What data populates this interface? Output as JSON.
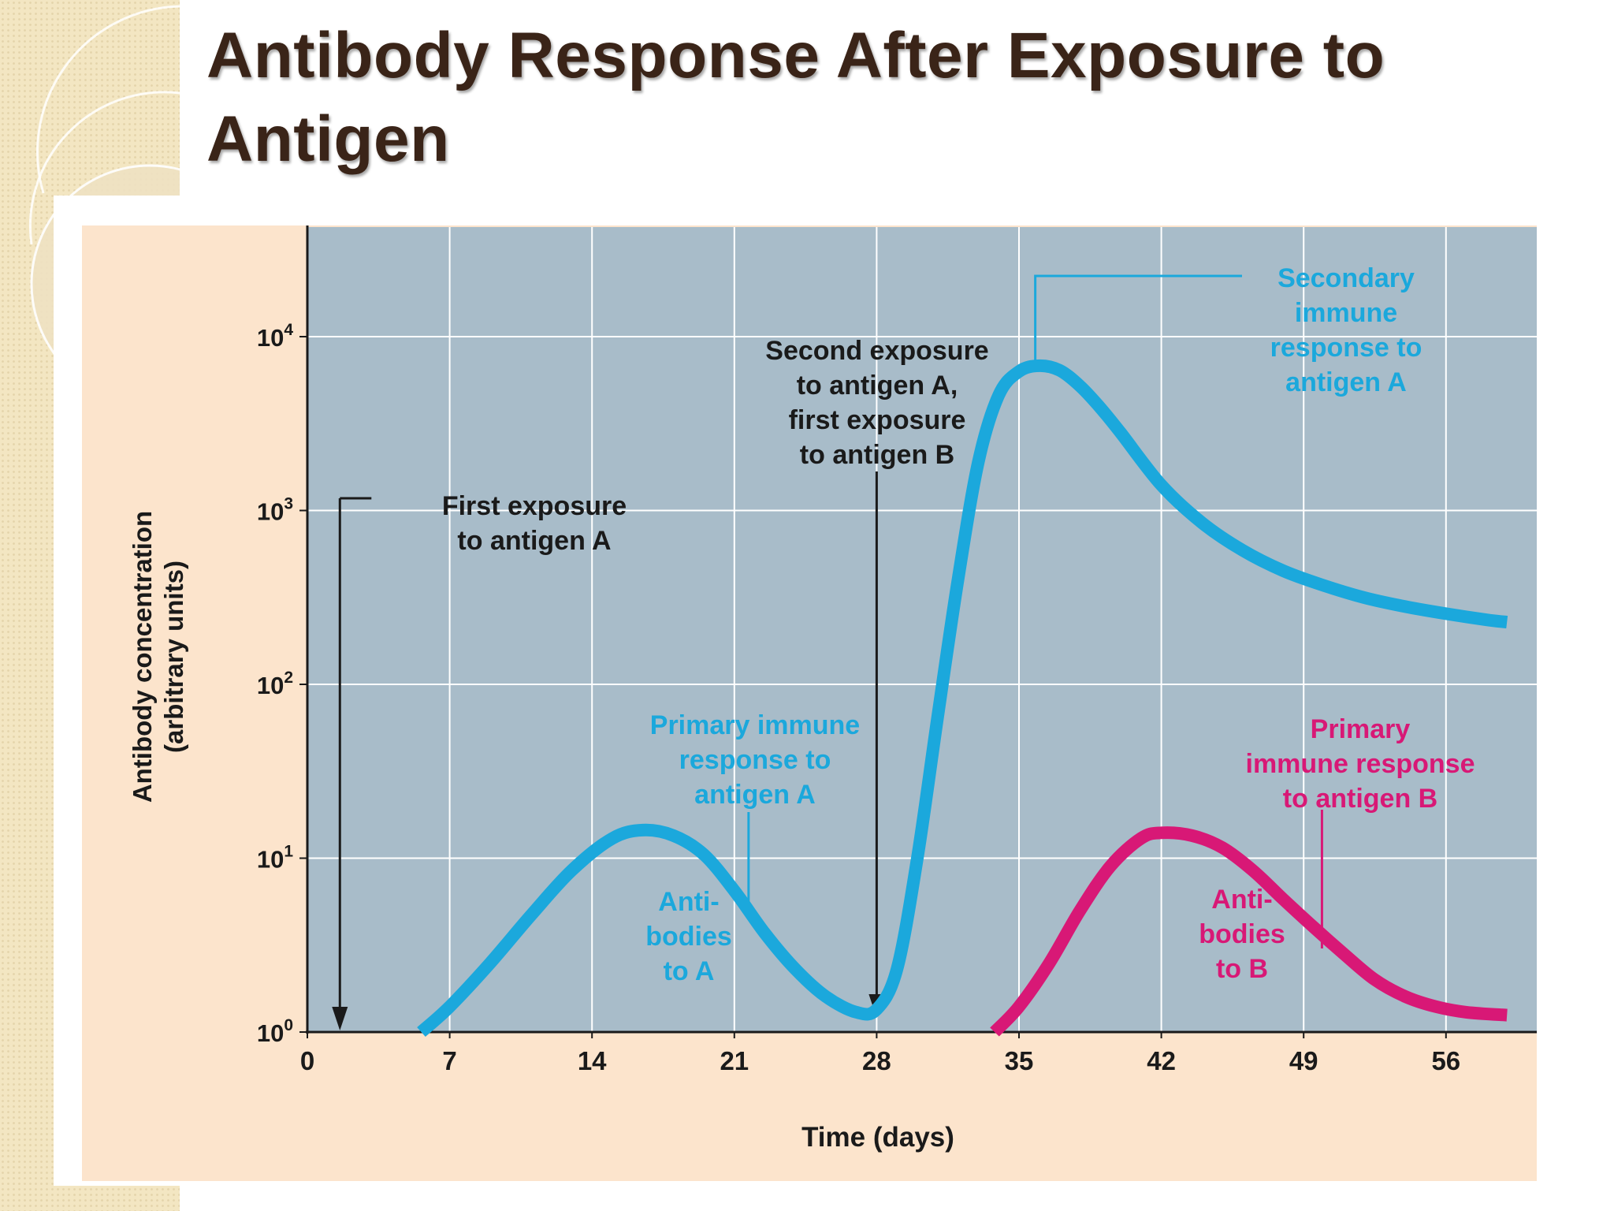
{
  "slide": {
    "title": "Antibody Response After Exposure to Antigen"
  },
  "colors": {
    "antigen_a": "#1ba8dc",
    "antigen_b": "#d81876",
    "plot_background": "#a8bcc9",
    "figure_background": "#fce4cc",
    "gridline": "#ffffff",
    "text": "#1a1a1a"
  },
  "chart_data": {
    "type": "line",
    "xlabel": "Time (days)",
    "ylabel": "Antibody concentration",
    "ylabel_units": "(arbitrary units)",
    "x_ticks": [
      "0",
      "7",
      "14",
      "21",
      "28",
      "35",
      "42",
      "49",
      "56"
    ],
    "xlim": [
      0,
      59
    ],
    "y_scale": "log",
    "ylim": [
      1,
      40000
    ],
    "y_ticks": [
      {
        "base": "10",
        "exp": "0"
      },
      {
        "base": "10",
        "exp": "1"
      },
      {
        "base": "10",
        "exp": "2"
      },
      {
        "base": "10",
        "exp": "3"
      },
      {
        "base": "10",
        "exp": "4"
      }
    ],
    "grid": true,
    "series": [
      {
        "key": "antibodies_a",
        "x": [
          5.6,
          7,
          9,
          11,
          13,
          15,
          16.5,
          18,
          19.5,
          21,
          22.5,
          24,
          25.5,
          27,
          28,
          29,
          30,
          31,
          32,
          33,
          34,
          35,
          36,
          37,
          38,
          39,
          40,
          42,
          44,
          46,
          48,
          50,
          52,
          54,
          56,
          58,
          59
        ],
        "y": [
          1.0,
          1.4,
          2.5,
          4.7,
          8.5,
          13,
          14.5,
          13.5,
          10.5,
          6.5,
          3.7,
          2.3,
          1.6,
          1.3,
          1.35,
          2.3,
          10,
          65,
          400,
          1900,
          4600,
          6300,
          6800,
          6400,
          5200,
          3900,
          2800,
          1400,
          850,
          590,
          450,
          370,
          315,
          280,
          255,
          235,
          228
        ]
      },
      {
        "key": "antibodies_b",
        "x": [
          33.8,
          35,
          36.5,
          38,
          39.5,
          41,
          42,
          43.5,
          45,
          46.5,
          48,
          49.5,
          51,
          52.5,
          54,
          55.5,
          57,
          59
        ],
        "y": [
          1.0,
          1.4,
          2.5,
          5,
          9,
          13,
          14,
          13.5,
          11.5,
          8.5,
          5.8,
          4.0,
          2.8,
          2.0,
          1.6,
          1.4,
          1.3,
          1.25
        ]
      }
    ],
    "annotations": {
      "first_exposure": {
        "day": 1.6,
        "lines": [
          "First exposure",
          "to antigen A"
        ]
      },
      "second_exposure": {
        "day": 28,
        "lines": [
          "Second exposure",
          "to antigen A,",
          "first exposure",
          "to antigen B"
        ]
      },
      "primary_a": {
        "lines": [
          "Primary immune",
          "response to",
          "antigen A"
        ]
      },
      "antibodies_a": {
        "lines": [
          "Anti-",
          "bodies",
          "to A"
        ]
      },
      "secondary_a": {
        "lines": [
          "Secondary",
          "immune",
          "response to",
          "antigen A"
        ]
      },
      "primary_b": {
        "lines": [
          "Primary",
          "immune response",
          "to antigen B"
        ]
      },
      "antibodies_b": {
        "lines": [
          "Anti-",
          "bodies",
          "to B"
        ]
      }
    }
  }
}
